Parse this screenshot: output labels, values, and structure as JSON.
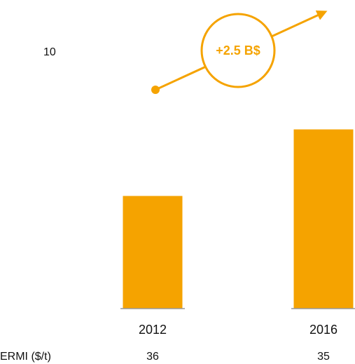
{
  "chart_data": {
    "type": "bar",
    "categories": [
      "2012",
      "2016"
    ],
    "values": [
      4.4,
      7.0
    ],
    "color": "#f5a300",
    "ylim": [
      0,
      10
    ],
    "yticks": [
      10
    ],
    "grid": false,
    "annotation": "+2.5 B$",
    "table_row": {
      "label": "ERMI ($/t)",
      "values": [
        36,
        35
      ]
    }
  }
}
